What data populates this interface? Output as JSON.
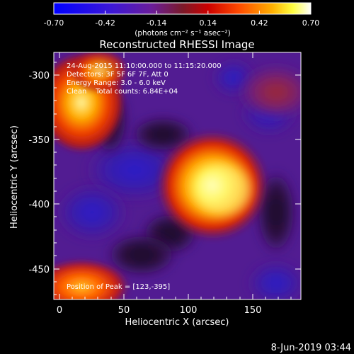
{
  "colorbar": {
    "ticks": [
      "-0.70",
      "-0.42",
      "-0.14",
      "0.14",
      "0.42",
      "0.70"
    ],
    "unit_label": "(photons cm⁻² s⁻¹ asec⁻²)"
  },
  "title": "Reconstructed RHESSI Image",
  "annotations": {
    "time_range": "24-Aug-2015 11:10:00.000 to 11:15:20.000",
    "detectors": "Detectors: 3F 5F 6F 7F, Att 0",
    "energy_range": "Energy Range: 3.0 - 6.0 keV",
    "method_counts": "Clean    Total counts: 6.84E+04",
    "peak_position": "Position of Peak = [123,-395]"
  },
  "axes": {
    "xlabel": "Heliocentric X (arcsec)",
    "ylabel": "Heliocentric Y (arcsec)",
    "xticks": [
      "0",
      "50",
      "100",
      "150"
    ],
    "yticks": [
      "-300",
      "-350",
      "-400",
      "-450"
    ]
  },
  "footer_date": "8-Jun-2019 03:44",
  "chart_data": {
    "type": "heatmap",
    "title": "Reconstructed RHESSI Image",
    "xlabel": "Heliocentric X (arcsec)",
    "ylabel": "Heliocentric Y (arcsec)",
    "xlim": [
      -3,
      187
    ],
    "ylim": [
      -473,
      -287
    ],
    "zlim": [
      -0.7,
      0.7
    ],
    "peak": [
      123,
      -395
    ],
    "colormap": [
      "#0000ff",
      "#4b0082",
      "#9a2a8a",
      "#ff0000",
      "#ff8c00",
      "#ffff00",
      "#ffffff"
    ]
  }
}
